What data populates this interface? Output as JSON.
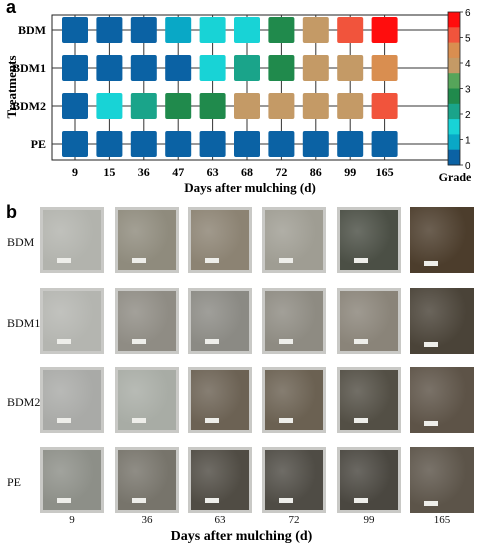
{
  "panel_a": {
    "letter": "a",
    "chart_data": {
      "type": "heatmap",
      "xlabel": "Days after mulching (d)",
      "ylabel": "Treatments",
      "x": [
        "9",
        "15",
        "36",
        "47",
        "63",
        "68",
        "72",
        "86",
        "99",
        "165"
      ],
      "y": [
        "BDM",
        "BDM1",
        "BDM2",
        "PE"
      ],
      "values": [
        [
          0.5,
          0.5,
          0.5,
          0.8,
          1.5,
          1.5,
          2.5,
          4.0,
          5.0,
          6.0
        ],
        [
          0.5,
          0.5,
          0.5,
          0.5,
          1.5,
          2.0,
          2.5,
          4.0,
          4.0,
          4.5
        ],
        [
          0.5,
          1.5,
          2.0,
          2.5,
          2.5,
          4.0,
          4.0,
          4.0,
          4.0,
          5.0
        ],
        [
          0.5,
          0.5,
          0.5,
          0.5,
          0.5,
          0.5,
          0.5,
          0.5,
          0.5,
          0.5
        ]
      ],
      "colorbar": {
        "label": "Grade",
        "range": [
          0,
          6
        ],
        "ticks": [
          "0",
          "1",
          "2",
          "3",
          "4",
          "5",
          "6"
        ],
        "colors": [
          "#0b62a4",
          "#09a8c6",
          "#18d3d6",
          "#1aa48a",
          "#208a4c",
          "#56a55a",
          "#c49a66",
          "#d98e50",
          "#f1543c",
          "#ff0d0d"
        ]
      }
    }
  },
  "panel_b": {
    "letter": "b",
    "rows": [
      "BDM",
      "BDM1",
      "BDM2",
      "PE"
    ],
    "days": [
      "9",
      "36",
      "63",
      "72",
      "99",
      "165"
    ],
    "xlabel": "Days after mulching (d)",
    "photos": [
      [
        "#b2b3ad",
        "#8f8b7d",
        "#8c8373",
        "#9f9d93",
        "#4b4f45",
        "#4c3d2c"
      ],
      [
        "#b4b5b0",
        "#8f8c84",
        "#8b8a84",
        "#8e8b82",
        "#8a8479",
        "#4a4338"
      ],
      [
        "#a9aaa7",
        "#a8aca5",
        "#6c6254",
        "#6b6152",
        "#534f45",
        "#5d5347"
      ],
      [
        "#8d8f88",
        "#77746b",
        "#504c44",
        "#4f4c45",
        "#4a4740",
        "#5c5449"
      ]
    ]
  }
}
